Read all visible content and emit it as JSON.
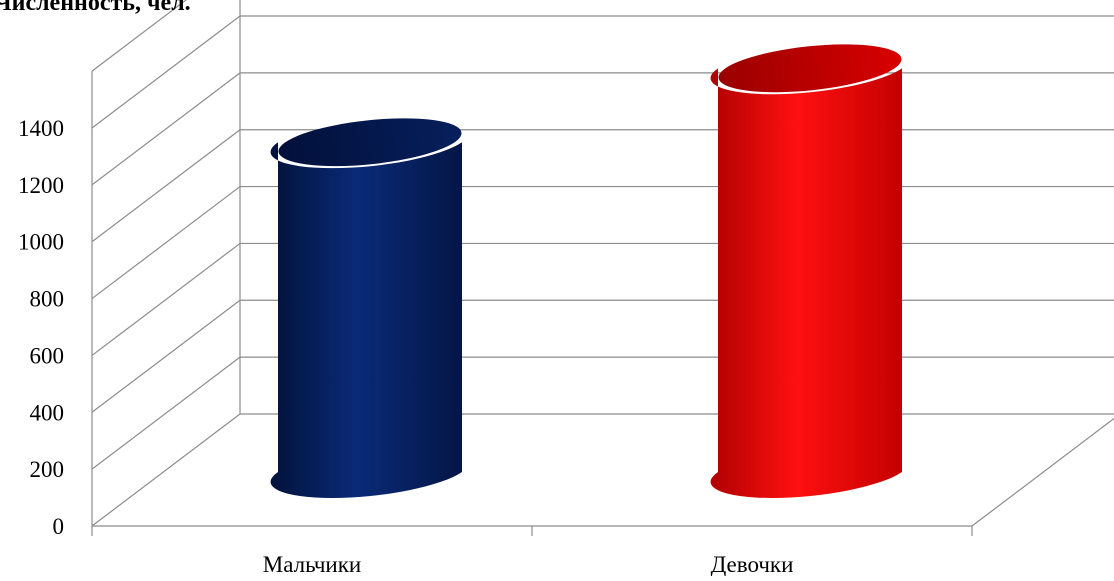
{
  "chart_data": {
    "type": "bar",
    "style": "3d-cylinder",
    "title": "",
    "ylabel": "Численность, чел.",
    "xlabel": "",
    "categories": [
      "Мальчики",
      "Девочки"
    ],
    "values": [
      1160,
      1420
    ],
    "colors": [
      "#062466",
      "#ff0000"
    ],
    "ylim": [
      0,
      1400
    ],
    "yticks": [
      0,
      200,
      400,
      600,
      800,
      1000,
      1200,
      1400
    ],
    "grid": true,
    "legend": "none"
  }
}
